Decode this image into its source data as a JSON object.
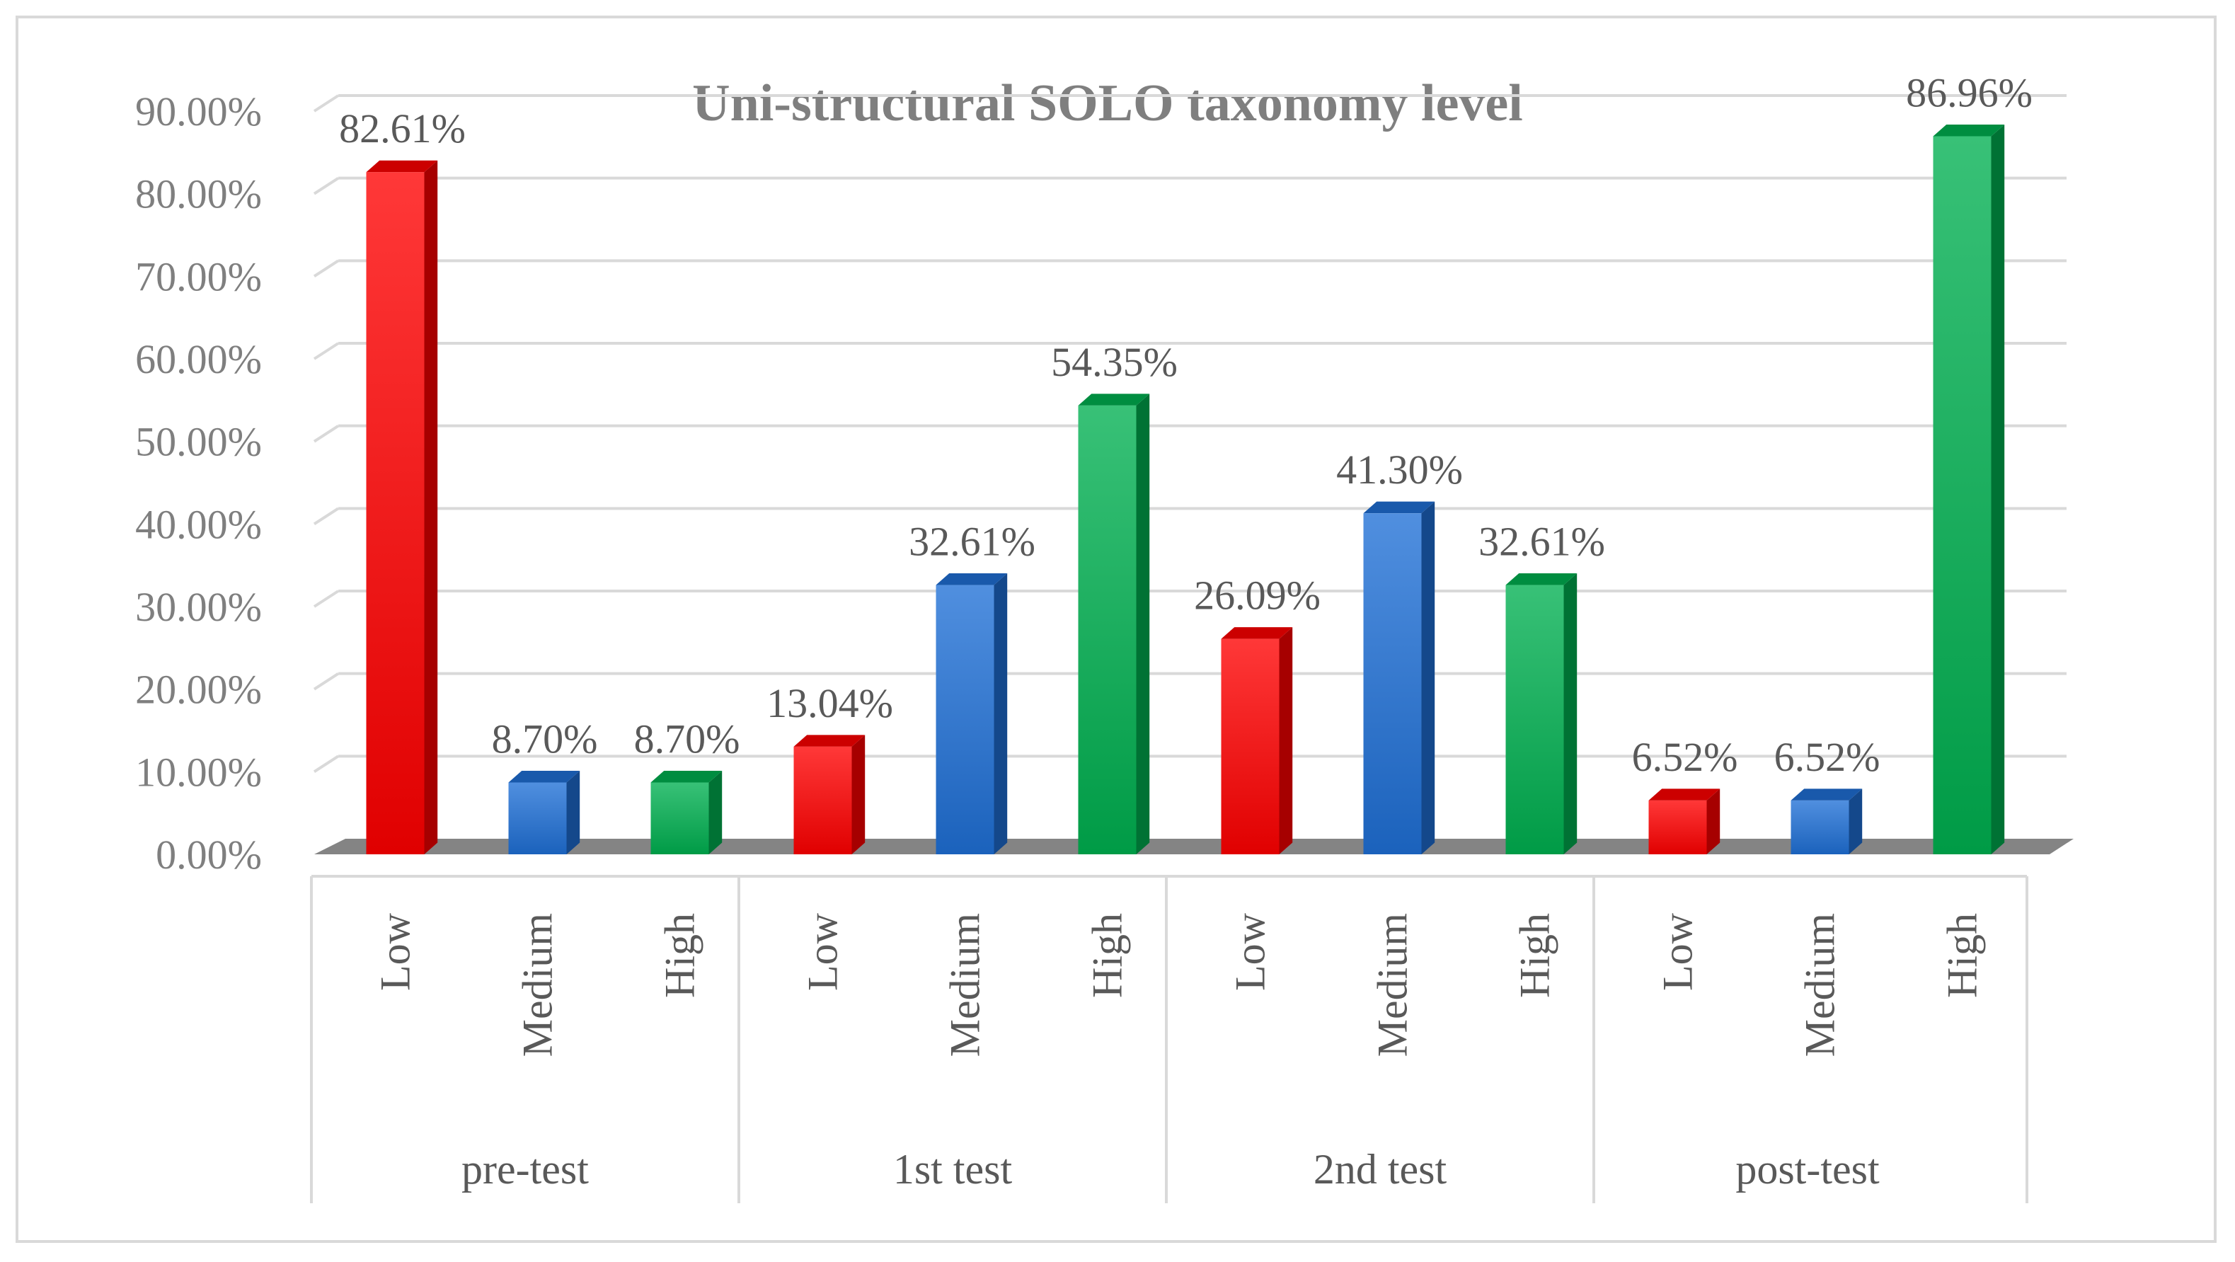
{
  "chart_data": {
    "type": "bar",
    "title": "Uni-structural SOLO taxonomy level",
    "ylim": [
      0,
      90
    ],
    "y_ticks": [
      "0.00%",
      "10.00%",
      "20.00%",
      "30.00%",
      "40.00%",
      "50.00%",
      "60.00%",
      "70.00%",
      "80.00%",
      "90.00%"
    ],
    "grid": true,
    "groups": [
      {
        "name": "pre-test",
        "bars": [
          {
            "category": "Low",
            "value": 82.61,
            "label": "82.61%"
          },
          {
            "category": "Medium",
            "value": 8.7,
            "label": "8.70%"
          },
          {
            "category": "High",
            "value": 8.7,
            "label": "8.70%"
          }
        ]
      },
      {
        "name": "1st test",
        "bars": [
          {
            "category": "Low",
            "value": 13.04,
            "label": "13.04%"
          },
          {
            "category": "Medium",
            "value": 32.61,
            "label": "32.61%"
          },
          {
            "category": "High",
            "value": 54.35,
            "label": "54.35%"
          }
        ]
      },
      {
        "name": "2nd test",
        "bars": [
          {
            "category": "Low",
            "value": 26.09,
            "label": "26.09%"
          },
          {
            "category": "Medium",
            "value": 41.3,
            "label": "41.30%"
          },
          {
            "category": "High",
            "value": 32.61,
            "label": "32.61%"
          }
        ]
      },
      {
        "name": "post-test",
        "bars": [
          {
            "category": "Low",
            "value": 6.52,
            "label": "6.52%"
          },
          {
            "category": "Medium",
            "value": 6.52,
            "label": "6.52%"
          },
          {
            "category": "High",
            "value": 86.96,
            "label": "86.96%"
          }
        ]
      }
    ],
    "colors": {
      "Low": "#ff0000",
      "Medium": "#1f6fd6",
      "High": "#00b050"
    }
  }
}
